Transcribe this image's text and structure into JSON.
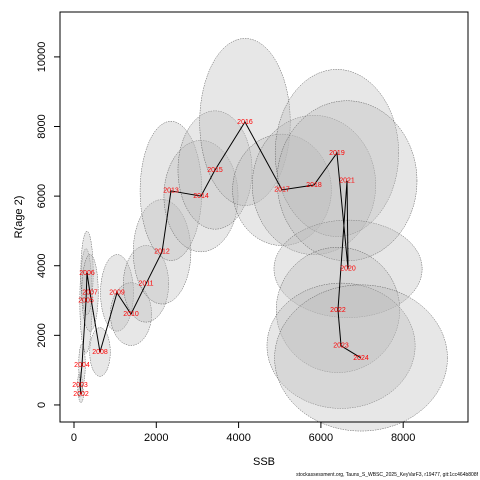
{
  "chart_data": {
    "type": "scatter",
    "xlabel": "SSB",
    "ylabel": "R(age 2)",
    "footer": "stockassessment.org, Tauns_S_WBSC_2025_KeyVarF3, r19477, git:1cc464b808f",
    "point_labels": [
      "2002",
      "2003",
      "2004",
      "2005",
      "2006",
      "2007",
      "2008",
      "2009",
      "2010",
      "2011",
      "2012",
      "2013",
      "2014",
      "2015",
      "2016",
      "2017",
      "2018",
      "2019",
      "2020",
      "2021",
      "2022",
      "2023",
      "2024"
    ],
    "x": [
      170,
      146,
      194,
      292,
      316,
      389,
      632,
      1045,
      1385,
      1750,
      2140,
      2357,
      3086,
      3427,
      4155,
      5055,
      5832,
      6390,
      6660,
      6635,
      6415,
      6490,
      6975
    ],
    "values": [
      316,
      575,
      1150,
      2990,
      3790,
      3220,
      1520,
      3220,
      2610,
      3480,
      4400,
      6150,
      6000,
      6750,
      8130,
      6180,
      6320,
      7240,
      3910,
      6440,
      2730,
      1700,
      1350
    ],
    "x_err": [
      60,
      60,
      80,
      150,
      150,
      200,
      250,
      400,
      500,
      550,
      700,
      750,
      900,
      900,
      1100,
      1200,
      1500,
      1500,
      1800,
      1700,
      1500,
      1800,
      2100
    ],
    "y_err": [
      250,
      350,
      600,
      1500,
      1200,
      1100,
      700,
      1100,
      900,
      1100,
      1500,
      2000,
      1600,
      1700,
      2400,
      1600,
      2000,
      2400,
      1400,
      2300,
      1800,
      1800,
      2100
    ],
    "line_color": "#000000",
    "label_color": "#ff0000",
    "ellipse_color": "#bbbbbb",
    "xlim": [
      -340,
      9575
    ],
    "ylim": [
      -490,
      11290
    ],
    "xticks": [
      0,
      2000,
      4000,
      6000,
      8000
    ],
    "yticks": [
      0,
      2000,
      4000,
      6000,
      8000,
      10000
    ]
  }
}
